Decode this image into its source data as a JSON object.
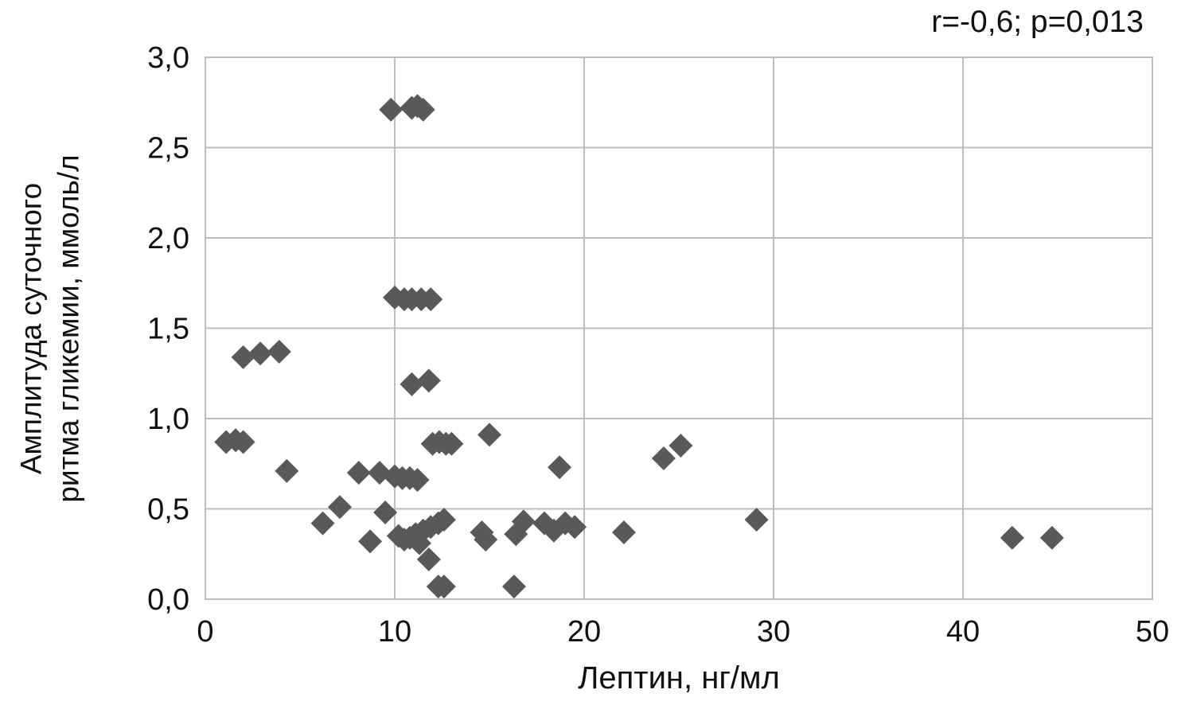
{
  "figure": {
    "annotation": "r=-0,6; p=0,013"
  },
  "chart_data": {
    "type": "scatter",
    "title": "",
    "xlabel": "Лептин, нг/мл",
    "ylabel": "Амплитуда суточного ритма гликемии, ммоль/л",
    "ylabel_line1": "Амплитуда суточного",
    "ylabel_line2": "ритма гликемии, ммоль/л",
    "annotation": "r=-0,6; p=0,013",
    "xlim": [
      0,
      50
    ],
    "ylim": [
      0.0,
      3.0
    ],
    "x_ticks": [
      0,
      10,
      20,
      30,
      40,
      50
    ],
    "x_tick_labels": [
      "0",
      "10",
      "20",
      "30",
      "40",
      "50"
    ],
    "y_ticks": [
      0.0,
      0.5,
      1.0,
      1.5,
      2.0,
      2.5,
      3.0
    ],
    "y_tick_labels": [
      "0,0",
      "0,5",
      "1,0",
      "1,5",
      "2,0",
      "2,5",
      "3,0"
    ],
    "grid": true,
    "legend_position": "none",
    "marker": "diamond",
    "marker_color": "#595959",
    "grid_color": "#bdbdbd",
    "points": [
      [
        9.8,
        2.71
      ],
      [
        10.9,
        2.72
      ],
      [
        11.2,
        2.73
      ],
      [
        11.5,
        2.71
      ],
      [
        10.0,
        1.67
      ],
      [
        10.5,
        1.66
      ],
      [
        10.9,
        1.66
      ],
      [
        11.4,
        1.66
      ],
      [
        11.9,
        1.66
      ],
      [
        2.0,
        1.34
      ],
      [
        2.9,
        1.36
      ],
      [
        3.9,
        1.37
      ],
      [
        10.9,
        1.19
      ],
      [
        11.8,
        1.21
      ],
      [
        1.1,
        0.87
      ],
      [
        1.6,
        0.88
      ],
      [
        2.0,
        0.87
      ],
      [
        4.3,
        0.71
      ],
      [
        12.0,
        0.86
      ],
      [
        12.35,
        0.87
      ],
      [
        12.7,
        0.86
      ],
      [
        13.0,
        0.86
      ],
      [
        15.0,
        0.91
      ],
      [
        24.2,
        0.78
      ],
      [
        25.1,
        0.85
      ],
      [
        8.1,
        0.7
      ],
      [
        9.2,
        0.7
      ],
      [
        10.0,
        0.68
      ],
      [
        10.4,
        0.67
      ],
      [
        10.8,
        0.67
      ],
      [
        11.2,
        0.66
      ],
      [
        18.7,
        0.73
      ],
      [
        6.2,
        0.42
      ],
      [
        7.1,
        0.51
      ],
      [
        9.5,
        0.48
      ],
      [
        8.7,
        0.32
      ],
      [
        10.2,
        0.35
      ],
      [
        10.5,
        0.33
      ],
      [
        10.8,
        0.34
      ],
      [
        11.1,
        0.36
      ],
      [
        11.3,
        0.31
      ],
      [
        11.5,
        0.38
      ],
      [
        11.9,
        0.4
      ],
      [
        12.3,
        0.42
      ],
      [
        12.6,
        0.44
      ],
      [
        11.8,
        0.22
      ],
      [
        12.3,
        0.07
      ],
      [
        12.6,
        0.07
      ],
      [
        16.3,
        0.07
      ],
      [
        14.6,
        0.37
      ],
      [
        14.8,
        0.33
      ],
      [
        16.4,
        0.36
      ],
      [
        16.8,
        0.43
      ],
      [
        17.9,
        0.42
      ],
      [
        18.4,
        0.38
      ],
      [
        19.0,
        0.42
      ],
      [
        19.5,
        0.4
      ],
      [
        22.1,
        0.37
      ],
      [
        29.1,
        0.44
      ],
      [
        42.6,
        0.34
      ],
      [
        44.7,
        0.34
      ]
    ]
  }
}
